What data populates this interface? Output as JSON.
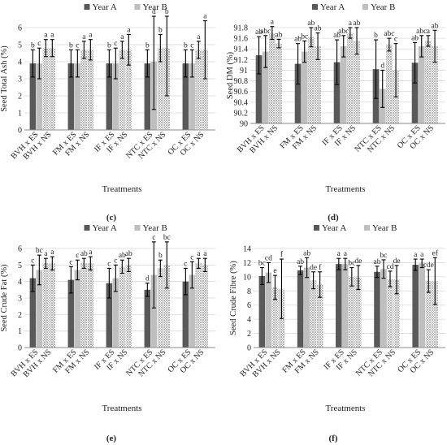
{
  "colors": {
    "year_a": "#595959",
    "year_b": "#bfbfbf",
    "axis": "#8c8c8c",
    "grid": "#d9d9d9",
    "error_bar": "#000000",
    "pattern_dots": "#7f7f7f"
  },
  "chart_data": [
    {
      "panel": "(c)",
      "type": "bar",
      "ylabel": "Seed Total Ash (%)",
      "xlabel": "Treatments",
      "ylim": [
        0,
        6
      ],
      "yticks": [
        0,
        1,
        2,
        3,
        4,
        5,
        6
      ],
      "legend_position": "top-center",
      "grid": true,
      "groups": [
        {
          "labels": [
            "BVH x ES",
            "BVH x NS"
          ],
          "values": [
            [
              3.9,
              3.9
            ],
            [
              4.8,
              4.8
            ]
          ],
          "errors": [
            [
              0.8,
              0.9
            ],
            [
              0.5,
              0.5
            ]
          ],
          "letters": [
            [
              "b",
              "c"
            ],
            [
              "a",
              "a"
            ]
          ]
        },
        {
          "labels": [
            "FM x ES",
            "FM x NS"
          ],
          "values": [
            [
              3.9,
              3.9
            ],
            [
              4.7,
              4.7
            ]
          ],
          "errors": [
            [
              0.8,
              0.8
            ],
            [
              0.5,
              0.6
            ]
          ],
          "letters": [
            [
              "b",
              "c"
            ],
            [
              "a",
              "a"
            ]
          ]
        },
        {
          "labels": [
            "IF x ES",
            "IF x NS"
          ],
          "values": [
            [
              3.9,
              3.9
            ],
            [
              4.7,
              4.7
            ]
          ],
          "errors": [
            [
              0.8,
              0.9
            ],
            [
              0.5,
              0.9
            ]
          ],
          "letters": [
            [
              "b",
              "c"
            ],
            [
              "a",
              "a"
            ]
          ]
        },
        {
          "labels": [
            "NTC x ES",
            "NTC x NS"
          ],
          "values": [
            [
              3.9,
              4.0
            ],
            [
              4.8,
              4.8
            ]
          ],
          "errors": [
            [
              0.8,
              2.8
            ],
            [
              0.8,
              2.8
            ]
          ],
          "letters": [
            [
              "b",
              "d"
            ],
            [
              "b",
              "b"
            ]
          ]
        },
        {
          "labels": [
            "OC x ES",
            "OC x NS"
          ],
          "values": [
            [
              3.9,
              3.9
            ],
            [
              4.7,
              4.7
            ]
          ],
          "errors": [
            [
              0.8,
              0.8
            ],
            [
              0.5,
              1.7
            ]
          ],
          "letters": [
            [
              "b",
              "c"
            ],
            [
              "a",
              "a"
            ]
          ]
        }
      ],
      "series": [
        {
          "name": "Year A"
        },
        {
          "name": "Year B"
        }
      ]
    },
    {
      "panel": "(d)",
      "type": "bar",
      "ylabel": "Seed DM (%)",
      "xlabel": "Treatments",
      "ylim": [
        90,
        91.8
      ],
      "yticks": [
        90,
        90.2,
        90.4,
        90.6,
        90.8,
        91,
        91.2,
        91.4,
        91.6,
        91.8
      ],
      "legend_position": "top-center",
      "grid": true,
      "groups": [
        {
          "labels": [
            "BVH x ES",
            "BVH x NS"
          ],
          "values": [
            [
              91.28,
              91.35
            ],
            [
              91.7,
              91.5
            ]
          ],
          "errors": [
            [
              0.35,
              0.3
            ],
            [
              0.12,
              0.08
            ]
          ],
          "letters": [
            [
              "ab",
              "abc"
            ],
            [
              "a",
              "ab"
            ]
          ]
        },
        {
          "labels": [
            "FM x ES",
            "FM x NS"
          ],
          "values": [
            [
              91.12,
              91.35
            ],
            [
              91.62,
              91.45
            ]
          ],
          "errors": [
            [
              0.38,
              0.2
            ],
            [
              0.18,
              0.25
            ]
          ],
          "letters": [
            [
              "ab",
              "bc"
            ],
            [
              "ab",
              "ab"
            ]
          ]
        },
        {
          "labels": [
            "IF x ES",
            "IF x NS"
          ],
          "values": [
            [
              91.15,
              91.45
            ],
            [
              91.7,
              91.55
            ]
          ],
          "errors": [
            [
              0.42,
              0.2
            ],
            [
              0.1,
              0.25
            ]
          ],
          "letters": [
            [
              "ab",
              "abc"
            ],
            [
              "a",
              "ab"
            ]
          ]
        },
        {
          "labels": [
            "NTC x ES",
            "NTC x NS"
          ],
          "values": [
            [
              91.02,
              90.65
            ],
            [
              91.48,
              91.0
            ]
          ],
          "errors": [
            [
              0.55,
              0.35
            ],
            [
              0.12,
              0.5
            ]
          ],
          "letters": [
            [
              "b",
              "d"
            ],
            [
              "abc",
              "c"
            ]
          ]
        },
        {
          "labels": [
            "OC x ES",
            "OC x NS"
          ],
          "values": [
            [
              91.14,
              91.45
            ],
            [
              91.55,
              91.45
            ]
          ],
          "errors": [
            [
              0.38,
              0.2
            ],
            [
              0.1,
              0.3
            ]
          ],
          "letters": [
            [
              "ab",
              "abc"
            ],
            [
              "a",
              "ab"
            ]
          ]
        }
      ],
      "series": [
        {
          "name": "Year A"
        },
        {
          "name": "Year B"
        }
      ]
    },
    {
      "panel": "(e)",
      "type": "bar",
      "ylabel": "Seed Crude Fat (%)",
      "xlabel": "Treatments",
      "ylim": [
        0,
        6
      ],
      "yticks": [
        0,
        1,
        2,
        3,
        4,
        5,
        6
      ],
      "legend_position": "top-center",
      "grid": true,
      "groups": [
        {
          "labels": [
            "BVH x ES",
            "BVH x NS"
          ],
          "values": [
            [
              4.2,
              4.7
            ],
            [
              5.1,
              5.1
            ]
          ],
          "errors": [
            [
              0.8,
              0.9
            ],
            [
              0.3,
              0.4
            ]
          ],
          "letters": [
            [
              "c",
              "bc"
            ],
            [
              "a",
              "a"
            ]
          ]
        },
        {
          "labels": [
            "FM x ES",
            "FM x NS"
          ],
          "values": [
            [
              4.1,
              4.7
            ],
            [
              5.1,
              5.1
            ]
          ],
          "errors": [
            [
              0.8,
              0.6
            ],
            [
              0.3,
              0.4
            ]
          ],
          "letters": [
            [
              "c",
              "c"
            ],
            [
              "ab",
              "a"
            ]
          ]
        },
        {
          "labels": [
            "IF x ES",
            "IF x NS"
          ],
          "values": [
            [
              3.9,
              4.2
            ],
            [
              4.9,
              5.0
            ]
          ],
          "errors": [
            [
              0.9,
              0.8
            ],
            [
              0.4,
              0.4
            ]
          ],
          "letters": [
            [
              "c",
              "c"
            ],
            [
              "ab",
              "ab"
            ]
          ]
        },
        {
          "labels": [
            "NTC x ES",
            "NTC x NS"
          ],
          "values": [
            [
              3.5,
              4.4
            ],
            [
              4.8,
              5.0
            ]
          ],
          "errors": [
            [
              0.4,
              2.0
            ],
            [
              0.5,
              1.4
            ]
          ],
          "letters": [
            [
              "d",
              "c"
            ],
            [
              "b",
              "bc"
            ]
          ]
        },
        {
          "labels": [
            "OC x ES",
            "OC x NS"
          ],
          "values": [
            [
              4.0,
              4.4
            ],
            [
              5.1,
              5.0
            ]
          ],
          "errors": [
            [
              0.8,
              0.8
            ],
            [
              0.3,
              0.4
            ]
          ],
          "letters": [
            [
              "c",
              "c"
            ],
            [
              "a",
              "a"
            ]
          ]
        }
      ],
      "series": [
        {
          "name": "Year A"
        },
        {
          "name": "Year B"
        }
      ]
    },
    {
      "panel": "(f)",
      "type": "bar",
      "ylabel": "Seed Crude Fibre (%)",
      "xlabel": "Treatments",
      "ylim": [
        0,
        14
      ],
      "yticks": [
        0,
        2,
        4,
        6,
        8,
        10,
        12,
        14
      ],
      "legend_position": "top-center",
      "grid": true,
      "groups": [
        {
          "labels": [
            "BVH x ES",
            "BVH x NS"
          ],
          "values": [
            [
              10.1,
              10.6
            ],
            [
              8.5,
              8.3
            ]
          ],
          "errors": [
            [
              1.2,
              1.4
            ],
            [
              1.7,
              4.2
            ]
          ],
          "letters": [
            [
              "bc",
              "cd"
            ],
            [
              "e",
              "f"
            ]
          ]
        },
        {
          "labels": [
            "FM x ES",
            "FM x NS"
          ],
          "values": [
            [
              10.9,
              11.3
            ],
            [
              9.5,
              8.9
            ]
          ],
          "errors": [
            [
              0.6,
              1.4
            ],
            [
              1.2,
              1.8
            ]
          ],
          "letters": [
            [
              "ab",
              "ab"
            ],
            [
              "de",
              "f"
            ]
          ]
        },
        {
          "labels": [
            "IF x ES",
            "IF x NS"
          ],
          "values": [
            [
              11.8,
              11.8
            ],
            [
              10.0,
              9.9
            ]
          ],
          "errors": [
            [
              0.8,
              0.8
            ],
            [
              1.3,
              1.7
            ]
          ],
          "letters": [
            [
              "a",
              "a"
            ],
            [
              "bc",
              "de"
            ]
          ]
        },
        {
          "labels": [
            "NTC x ES",
            "NTC x NS"
          ],
          "values": [
            [
              10.7,
              11.1
            ],
            [
              9.7,
              9.6
            ]
          ],
          "errors": [
            [
              0.8,
              1.3
            ],
            [
              1.1,
              2.0
            ]
          ],
          "letters": [
            [
              "ab",
              "bc"
            ],
            [
              "cd",
              "de"
            ]
          ]
        },
        {
          "labels": [
            "OC x ES",
            "OC x NS"
          ],
          "values": [
            [
              11.7,
              11.9
            ],
            [
              9.4,
              9.4
            ]
          ],
          "errors": [
            [
              0.8,
              0.6
            ],
            [
              1.6,
              3.3
            ]
          ],
          "letters": [
            [
              "a",
              "a"
            ],
            [
              "cde",
              "ef"
            ]
          ]
        }
      ],
      "series": [
        {
          "name": "Year A"
        },
        {
          "name": "Year B"
        }
      ]
    }
  ]
}
